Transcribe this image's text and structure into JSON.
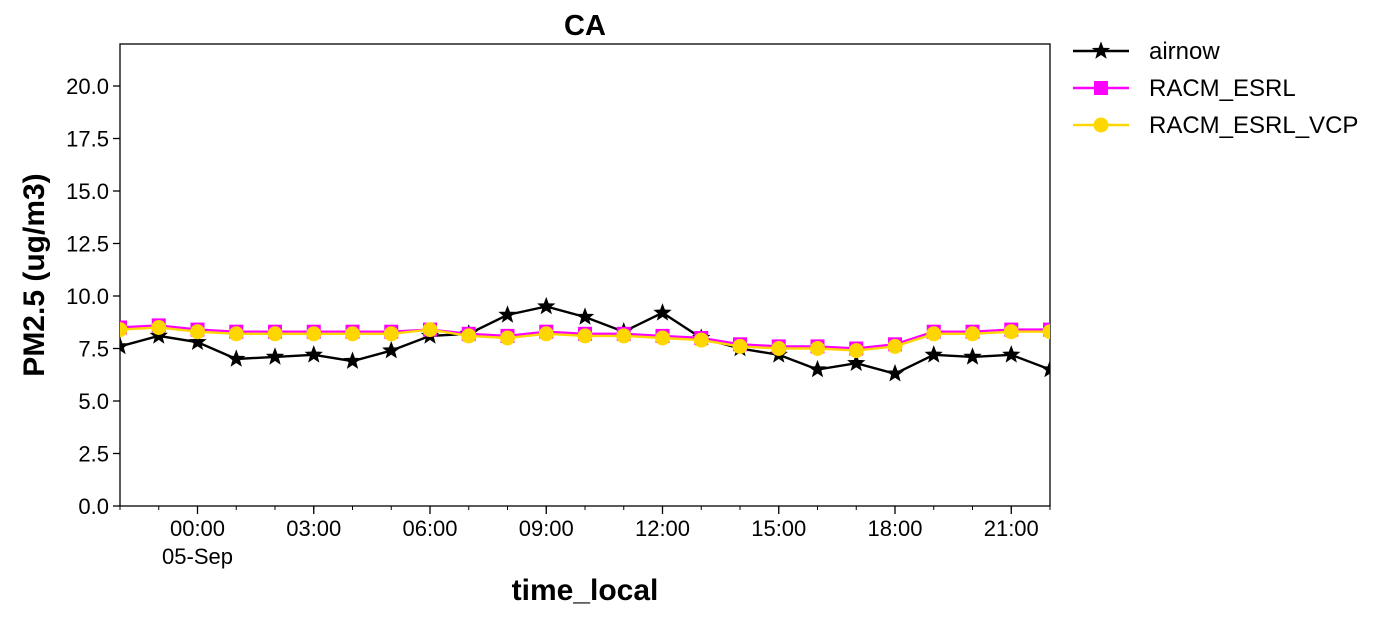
{
  "chart_data": {
    "type": "line",
    "title": "CA",
    "xlabel": "time_local",
    "ylabel": "PM2.5 (ug/m3)",
    "x": [
      "09-04 22:00",
      "09-04 23:00",
      "09-05 00:00",
      "09-05 01:00",
      "09-05 02:00",
      "09-05 03:00",
      "09-05 04:00",
      "09-05 05:00",
      "09-05 06:00",
      "09-05 07:00",
      "09-05 08:00",
      "09-05 09:00",
      "09-05 10:00",
      "09-05 11:00",
      "09-05 12:00",
      "09-05 13:00",
      "09-05 14:00",
      "09-05 15:00",
      "09-05 16:00",
      "09-05 17:00",
      "09-05 18:00",
      "09-05 19:00",
      "09-05 20:00",
      "09-05 21:00",
      "09-05 22:00"
    ],
    "xlim": [
      "09-04 22:00",
      "09-05 22:00"
    ],
    "ylim": [
      0,
      22
    ],
    "yticks": [
      "0.0",
      "2.5",
      "5.0",
      "7.5",
      "10.0",
      "12.5",
      "15.0",
      "17.5",
      "20.0"
    ],
    "xticks": [
      {
        "x": "09-05 00:00",
        "label": "00:00",
        "sublabel": "05-Sep"
      },
      {
        "x": "09-05 03:00",
        "label": "03:00",
        "sublabel": ""
      },
      {
        "x": "09-05 06:00",
        "label": "06:00",
        "sublabel": ""
      },
      {
        "x": "09-05 09:00",
        "label": "09:00",
        "sublabel": ""
      },
      {
        "x": "09-05 12:00",
        "label": "12:00",
        "sublabel": ""
      },
      {
        "x": "09-05 15:00",
        "label": "15:00",
        "sublabel": ""
      },
      {
        "x": "09-05 18:00",
        "label": "18:00",
        "sublabel": ""
      },
      {
        "x": "09-05 21:00",
        "label": "21:00",
        "sublabel": ""
      }
    ],
    "grid": false,
    "legend_position": "outside-top-right",
    "series": [
      {
        "name": "airnow",
        "color": "#000000",
        "marker": "star",
        "values": [
          7.6,
          8.1,
          7.8,
          7.0,
          7.1,
          7.2,
          6.9,
          7.4,
          8.1,
          8.2,
          9.1,
          9.5,
          9.0,
          8.3,
          9.2,
          8.0,
          7.5,
          7.2,
          6.5,
          6.8,
          6.3,
          7.2,
          7.1,
          7.2,
          6.5
        ]
      },
      {
        "name": "RACM_ESRL",
        "color": "#ff00ff",
        "marker": "square",
        "values": [
          8.5,
          8.6,
          8.4,
          8.3,
          8.3,
          8.3,
          8.3,
          8.3,
          8.4,
          8.2,
          8.1,
          8.3,
          8.2,
          8.2,
          8.1,
          8.0,
          7.7,
          7.6,
          7.6,
          7.5,
          7.7,
          8.3,
          8.3,
          8.4,
          8.4
        ]
      },
      {
        "name": "RACM_ESRL_VCP",
        "color": "#ffd700",
        "marker": "circle",
        "values": [
          8.4,
          8.5,
          8.3,
          8.2,
          8.2,
          8.2,
          8.2,
          8.2,
          8.4,
          8.1,
          8.0,
          8.2,
          8.1,
          8.1,
          8.0,
          7.9,
          7.6,
          7.5,
          7.5,
          7.4,
          7.6,
          8.2,
          8.2,
          8.3,
          8.3
        ]
      }
    ]
  }
}
